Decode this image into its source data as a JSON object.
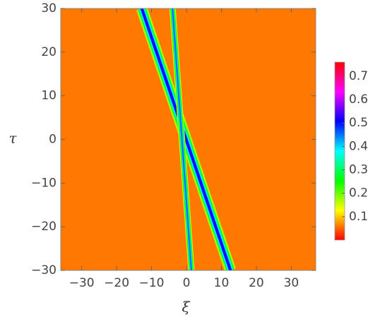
{
  "chart_data": {
    "type": "density",
    "xlabel": "ξ",
    "ylabel": "τ",
    "xlim": [
      -36,
      37
    ],
    "ylim": [
      -30,
      30
    ],
    "xticks": [
      {
        "value": -30,
        "label": "−30"
      },
      {
        "value": -20,
        "label": "−20"
      },
      {
        "value": -10,
        "label": "−10"
      },
      0,
      10,
      20,
      30
    ],
    "yticks": [
      {
        "value": -30,
        "label": "−30"
      },
      {
        "value": -20,
        "label": "−20"
      },
      {
        "value": -10,
        "label": "−10"
      },
      0,
      10,
      20,
      30
    ],
    "colormap": "hue",
    "background": 0.06,
    "series": [
      {
        "x": [
          -12.8,
          12.6
        ],
        "y": [
          30,
          -30
        ],
        "peak": 0.5
      },
      {
        "x": [
          -4,
          1.4
        ],
        "y": [
          30,
          -30
        ],
        "peak": 0.45
      }
    ],
    "colorbar": {
      "lim": [
        0,
        0.76
      ],
      "ticks": [
        0.1,
        0.2,
        0.3,
        0.4,
        0.5,
        0.6,
        0.7
      ]
    }
  }
}
